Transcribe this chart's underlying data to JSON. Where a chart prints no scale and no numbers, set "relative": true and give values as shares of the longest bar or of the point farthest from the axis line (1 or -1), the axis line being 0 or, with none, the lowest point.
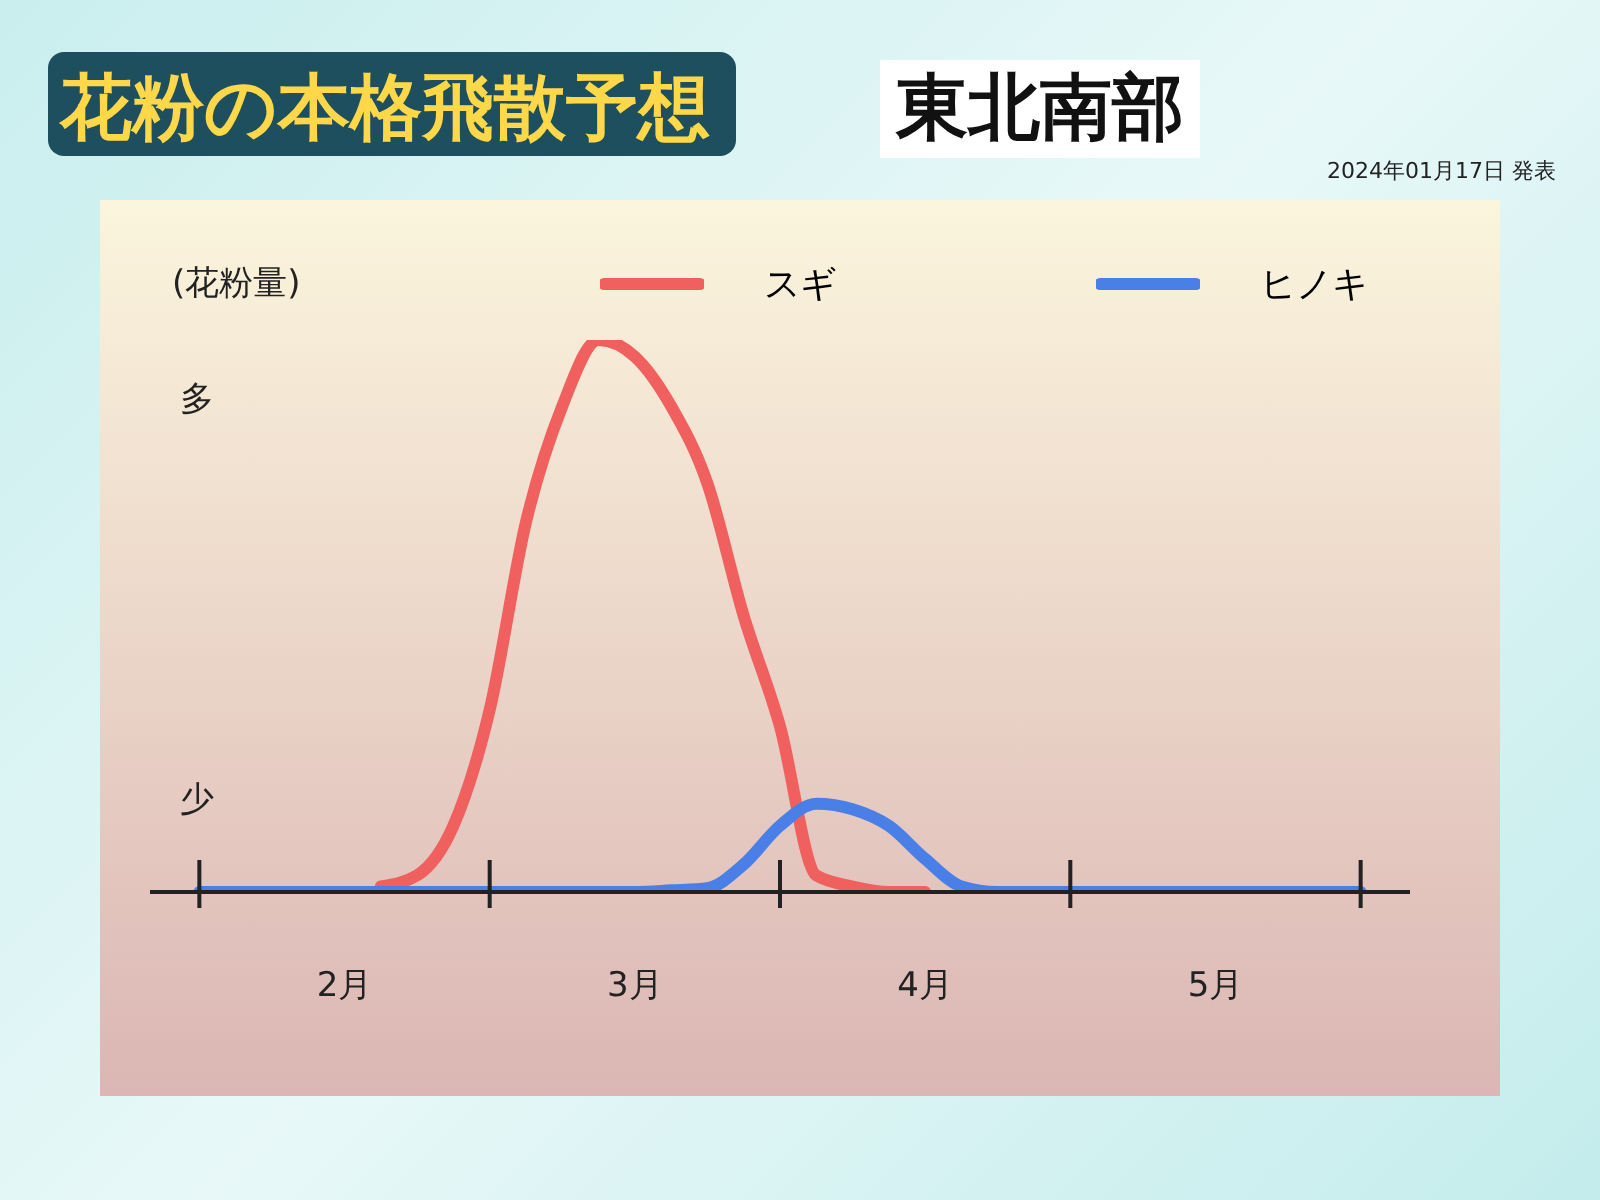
{
  "chart_data": {
    "type": "line",
    "title": "花粉の本格飛散予想",
    "subtitle": "東北南部",
    "ylabel": "(花粉量)",
    "annotations": [
      "2024年01月17日 発表",
      "多",
      "少"
    ],
    "relative": true,
    "legend": "top",
    "marker": "none",
    "line_style": "solid",
    "categories": [
      null,
      null,
      null,
      null,
      "2月",
      null,
      null,
      null,
      null,
      null,
      null,
      null,
      "3月",
      null,
      null,
      null,
      null,
      null,
      null,
      null,
      "4月",
      null,
      null,
      null,
      null,
      null,
      null,
      null,
      "5月",
      null,
      null,
      null,
      null
    ],
    "series": [
      {
        "name": "スギ",
        "color": "#f0605e",
        "values": [
          null,
          null,
          null,
          null,
          null,
          0.01,
          0.03,
          0.12,
          0.33,
          0.67,
          0.88,
          1,
          0.97,
          0.88,
          0.74,
          0.5,
          0.3,
          0.03,
          0.01,
          0,
          0,
          null,
          null,
          null,
          null,
          null,
          null,
          null,
          null,
          null,
          null,
          null,
          null
        ]
      },
      {
        "name": "ヒノキ",
        "color": "#4a7fe8",
        "values": [
          0,
          0,
          0,
          0,
          0,
          0,
          0,
          0,
          0,
          0,
          0,
          0,
          0,
          0.003,
          0.007,
          0.05,
          0.12,
          0.16,
          0.15,
          0.12,
          0.06,
          0.01,
          0,
          0,
          0,
          0,
          0,
          0,
          0,
          0,
          0,
          0,
          0
        ]
      }
    ]
  }
}
